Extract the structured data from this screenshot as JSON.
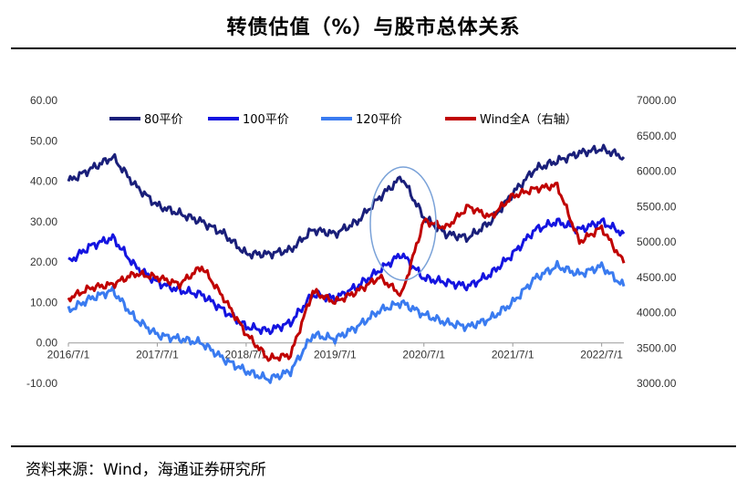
{
  "title": "转债估值（%）与股市总体关系",
  "source": "资料来源：Wind，海通证券研究所",
  "chart_data": {
    "type": "line",
    "left_axis": {
      "ylim": [
        -10,
        60
      ],
      "ticks": [
        "-10.00",
        "0.00",
        "10.00",
        "20.00",
        "30.00",
        "40.00",
        "50.00",
        "60.00"
      ]
    },
    "right_axis": {
      "ylim": [
        3000,
        7000
      ],
      "ticks": [
        "3000.00",
        "3500.00",
        "4000.00",
        "4500.00",
        "5000.00",
        "5500.00",
        "6000.00",
        "6500.00",
        "7000.00"
      ]
    },
    "x_ticks": [
      "2016/7/1",
      "2017/7/1",
      "2018/7/1",
      "2019/7/1",
      "2020/7/1",
      "2021/7/1",
      "2022/7/1"
    ],
    "x": [
      "2016/7",
      "2016/10",
      "2017/1",
      "2017/4",
      "2017/7",
      "2017/10",
      "2018/1",
      "2018/4",
      "2018/7",
      "2018/10",
      "2019/1",
      "2019/4",
      "2019/7",
      "2019/10",
      "2020/1",
      "2020/4",
      "2020/7",
      "2020/10",
      "2021/1",
      "2021/4",
      "2021/7",
      "2021/10",
      "2022/1",
      "2022/4",
      "2022/7",
      "2022/10"
    ],
    "legend_position": "top",
    "series": [
      {
        "name": "80平价",
        "axis": "left",
        "color": "#1a1f7a",
        "values": [
          40,
          43,
          46,
          39,
          34,
          32,
          30,
          27,
          22,
          22,
          23,
          28,
          27,
          30,
          36,
          41,
          31,
          27,
          26,
          30,
          37,
          43,
          45,
          47,
          48,
          46
        ]
      },
      {
        "name": "100平价",
        "axis": "left",
        "color": "#1414e0",
        "values": [
          20,
          24,
          26,
          19,
          15,
          13,
          12,
          8,
          4,
          3,
          5,
          12,
          11,
          14,
          18,
          22,
          16,
          15,
          14,
          17,
          22,
          28,
          30,
          28,
          30,
          27
        ]
      },
      {
        "name": "120平价",
        "axis": "left",
        "color": "#3a7bf0",
        "values": [
          8,
          11,
          13,
          6,
          2,
          1,
          0,
          -4,
          -7,
          -9,
          -7,
          2,
          1,
          4,
          8,
          10,
          7,
          5,
          4,
          6,
          10,
          16,
          19,
          17,
          19,
          14
        ]
      },
      {
        "name": "Wind全A（右轴）",
        "axis": "right",
        "color": "#c00000",
        "values": [
          4200,
          4350,
          4400,
          4550,
          4500,
          4400,
          4650,
          4200,
          3700,
          3350,
          3400,
          4300,
          4150,
          4300,
          4500,
          4250,
          5300,
          5200,
          5500,
          5350,
          5650,
          5750,
          5800,
          5000,
          5200,
          4700
        ]
      }
    ],
    "annotation": "ellipse-around-2020-peak",
    "grid": false
  }
}
